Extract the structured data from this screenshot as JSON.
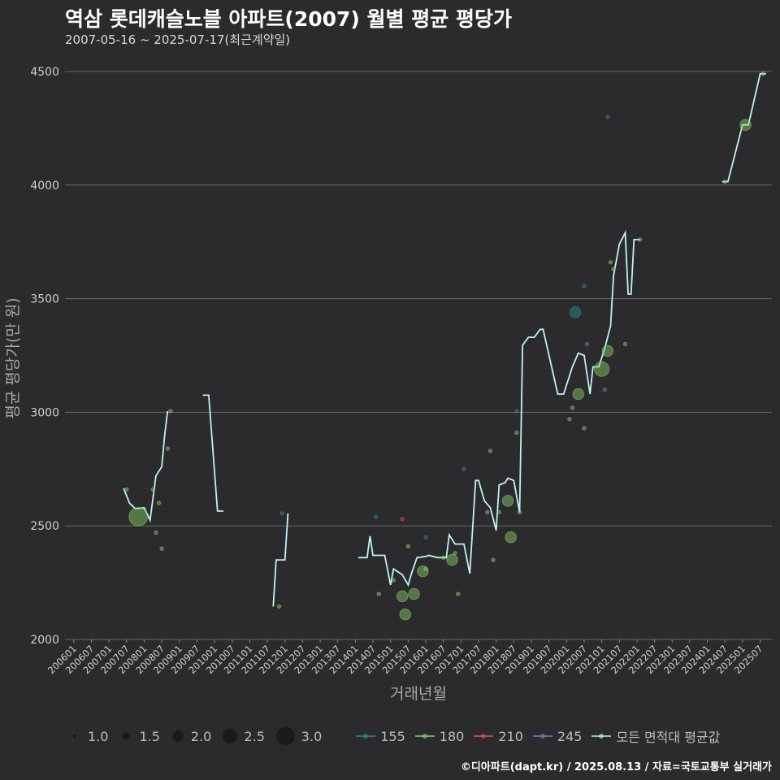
{
  "chart_data": {
    "type": "scatter",
    "title": "역삼 롯데캐슬노블 아파트(2007) 월별 평균 평당가",
    "subtitle": "2007-05-16 ~ 2025-07-17(최근계약일)",
    "xlabel": "거래년월",
    "ylabel": "평균 평당가(만 원)",
    "ylim": [
      2000,
      4600
    ],
    "yticks": [
      2000,
      2500,
      3000,
      3500,
      4000,
      4500
    ],
    "grid": true,
    "x_range_months": [
      "2005-10",
      "2025-11"
    ],
    "xtick_labels": [
      "200601",
      "200607",
      "200701",
      "200707",
      "200801",
      "200807",
      "200901",
      "200907",
      "201001",
      "201007",
      "201101",
      "201107",
      "201201",
      "201207",
      "201301",
      "201307",
      "201401",
      "201407",
      "201501",
      "201507",
      "201601",
      "201607",
      "201701",
      "201707",
      "201801",
      "201807",
      "201901",
      "201907",
      "202001",
      "202007",
      "202101",
      "202107",
      "202201",
      "202207",
      "202301",
      "202307",
      "202401",
      "202407",
      "202501",
      "202507"
    ],
    "size_legend": {
      "title": "",
      "values": [
        "1.0",
        "1.5",
        "2.0",
        "2.5",
        "3.0"
      ]
    },
    "color_legend": [
      {
        "name": "155",
        "color": "#2a8e96"
      },
      {
        "name": "180",
        "color": "#8ed36b"
      },
      {
        "name": "210",
        "color": "#e0545a"
      },
      {
        "name": "245",
        "color": "#6f82c4"
      },
      {
        "name": "모든 면적대 평균값",
        "color": "#bff2f2"
      }
    ],
    "series": [
      {
        "name": "모든 면적대 평균값",
        "type": "line",
        "points": [
          {
            "x": "2007-06",
            "y": 2665
          },
          {
            "x": "2007-08",
            "y": 2600
          },
          {
            "x": "2007-10",
            "y": 2575
          },
          {
            "x": "2008-01",
            "y": 2580
          },
          {
            "x": "2008-03",
            "y": 2525
          },
          {
            "x": "2008-05",
            "y": 2720
          },
          {
            "x": "2008-07",
            "y": 2760
          },
          {
            "x": "2008-08",
            "y": 2900
          },
          {
            "x": "2008-09",
            "y": 3005
          },
          {
            "x": "2009-09",
            "y": 3075
          },
          {
            "x": "2009-11",
            "y": 3075
          },
          {
            "x": "2010-02",
            "y": 2565
          },
          {
            "x": "2010-04",
            "y": 2565
          },
          {
            "x": "2011-09",
            "y": 2145
          },
          {
            "x": "2011-10",
            "y": 2350
          },
          {
            "x": "2012-01",
            "y": 2350
          },
          {
            "x": "2012-02",
            "y": 2555
          },
          {
            "x": "2014-02",
            "y": 2360
          },
          {
            "x": "2014-05",
            "y": 2360
          },
          {
            "x": "2014-06",
            "y": 2455
          },
          {
            "x": "2014-07",
            "y": 2370
          },
          {
            "x": "2014-11",
            "y": 2370
          },
          {
            "x": "2015-01",
            "y": 2240
          },
          {
            "x": "2015-02",
            "y": 2310
          },
          {
            "x": "2015-05",
            "y": 2285
          },
          {
            "x": "2015-07",
            "y": 2240
          },
          {
            "x": "2015-08",
            "y": 2285
          },
          {
            "x": "2015-10",
            "y": 2360
          },
          {
            "x": "2016-01",
            "y": 2365
          },
          {
            "x": "2016-02",
            "y": 2370
          },
          {
            "x": "2016-05",
            "y": 2360
          },
          {
            "x": "2016-08",
            "y": 2360
          },
          {
            "x": "2016-09",
            "y": 2460
          },
          {
            "x": "2016-11",
            "y": 2420
          },
          {
            "x": "2017-02",
            "y": 2420
          },
          {
            "x": "2017-04",
            "y": 2290
          },
          {
            "x": "2017-06",
            "y": 2700
          },
          {
            "x": "2017-07",
            "y": 2700
          },
          {
            "x": "2017-09",
            "y": 2610
          },
          {
            "x": "2017-11",
            "y": 2580
          },
          {
            "x": "2018-01",
            "y": 2480
          },
          {
            "x": "2018-02",
            "y": 2680
          },
          {
            "x": "2018-04",
            "y": 2690
          },
          {
            "x": "2018-05",
            "y": 2710
          },
          {
            "x": "2018-07",
            "y": 2700
          },
          {
            "x": "2018-09",
            "y": 2560
          },
          {
            "x": "2018-10",
            "y": 3295
          },
          {
            "x": "2018-12",
            "y": 3330
          },
          {
            "x": "2019-02",
            "y": 3330
          },
          {
            "x": "2019-04",
            "y": 3365
          },
          {
            "x": "2019-05",
            "y": 3365
          },
          {
            "x": "2019-10",
            "y": 3080
          },
          {
            "x": "2019-12",
            "y": 3080
          },
          {
            "x": "2020-03",
            "y": 3200
          },
          {
            "x": "2020-05",
            "y": 3260
          },
          {
            "x": "2020-07",
            "y": 3250
          },
          {
            "x": "2020-09",
            "y": 3080
          },
          {
            "x": "2020-10",
            "y": 3200
          },
          {
            "x": "2020-12",
            "y": 3200
          },
          {
            "x": "2021-02",
            "y": 3280
          },
          {
            "x": "2021-04",
            "y": 3380
          },
          {
            "x": "2021-05",
            "y": 3600
          },
          {
            "x": "2021-07",
            "y": 3740
          },
          {
            "x": "2021-09",
            "y": 3790
          },
          {
            "x": "2021-10",
            "y": 3520
          },
          {
            "x": "2021-11",
            "y": 3520
          },
          {
            "x": "2021-12",
            "y": 3760
          },
          {
            "x": "2022-02",
            "y": 3760
          },
          {
            "x": "2024-06",
            "y": 4015
          },
          {
            "x": "2024-08",
            "y": 4015
          },
          {
            "x": "2025-01",
            "y": 4265
          },
          {
            "x": "2025-03",
            "y": 4265
          },
          {
            "x": "2025-07",
            "y": 4490
          },
          {
            "x": "2025-09",
            "y": 4490
          }
        ]
      },
      {
        "name": "155",
        "type": "points",
        "points": [
          {
            "x": "2011-12",
            "y": 2555,
            "size": 1.0
          },
          {
            "x": "2014-08",
            "y": 2540,
            "size": 1.0
          },
          {
            "x": "2016-01",
            "y": 2450,
            "size": 1.0
          },
          {
            "x": "2017-02",
            "y": 2750,
            "size": 1.0
          },
          {
            "x": "2018-08",
            "y": 3005,
            "size": 1.0
          },
          {
            "x": "2020-04",
            "y": 3440,
            "size": 2.0
          },
          {
            "x": "2020-07",
            "y": 3555,
            "size": 1.0
          },
          {
            "x": "2021-03",
            "y": 4300,
            "size": 1.0
          }
        ]
      },
      {
        "name": "180",
        "type": "points",
        "points": [
          {
            "x": "2007-07",
            "y": 2660,
            "size": 1.0
          },
          {
            "x": "2007-11",
            "y": 2540,
            "size": 3.0
          },
          {
            "x": "2008-04",
            "y": 2660,
            "size": 1.0
          },
          {
            "x": "2008-05",
            "y": 2470,
            "size": 1.0
          },
          {
            "x": "2008-06",
            "y": 2600,
            "size": 1.0
          },
          {
            "x": "2008-07",
            "y": 2400,
            "size": 1.0
          },
          {
            "x": "2008-09",
            "y": 2840,
            "size": 1.0
          },
          {
            "x": "2008-10",
            "y": 3005,
            "size": 1.0
          },
          {
            "x": "2011-11",
            "y": 2145,
            "size": 1.0
          },
          {
            "x": "2014-09",
            "y": 2200,
            "size": 1.0
          },
          {
            "x": "2015-02",
            "y": 2260,
            "size": 1.0
          },
          {
            "x": "2015-05",
            "y": 2190,
            "size": 2.0
          },
          {
            "x": "2015-06",
            "y": 2110,
            "size": 2.0
          },
          {
            "x": "2015-07",
            "y": 2410,
            "size": 1.0
          },
          {
            "x": "2015-09",
            "y": 2200,
            "size": 2.0
          },
          {
            "x": "2015-12",
            "y": 2300,
            "size": 2.0
          },
          {
            "x": "2016-01",
            "y": 2310,
            "size": 1.0
          },
          {
            "x": "2016-07",
            "y": 2360,
            "size": 1.0
          },
          {
            "x": "2016-10",
            "y": 2350,
            "size": 2.0
          },
          {
            "x": "2016-11",
            "y": 2380,
            "size": 1.0
          },
          {
            "x": "2016-12",
            "y": 2200,
            "size": 1.0
          },
          {
            "x": "2017-10",
            "y": 2560,
            "size": 1.0
          },
          {
            "x": "2017-11",
            "y": 2830,
            "size": 1.0
          },
          {
            "x": "2017-12",
            "y": 2350,
            "size": 1.0
          },
          {
            "x": "2018-02",
            "y": 2560,
            "size": 1.0
          },
          {
            "x": "2018-05",
            "y": 2610,
            "size": 2.0
          },
          {
            "x": "2018-06",
            "y": 2450,
            "size": 2.0
          },
          {
            "x": "2018-08",
            "y": 2910,
            "size": 1.0
          },
          {
            "x": "2018-09",
            "y": 2560,
            "size": 1.0
          },
          {
            "x": "2020-02",
            "y": 2970,
            "size": 1.0
          },
          {
            "x": "2020-03",
            "y": 3020,
            "size": 1.0
          },
          {
            "x": "2020-05",
            "y": 3080,
            "size": 2.0
          },
          {
            "x": "2020-07",
            "y": 2930,
            "size": 1.0
          },
          {
            "x": "2021-01",
            "y": 3190,
            "size": 2.5
          },
          {
            "x": "2021-03",
            "y": 3270,
            "size": 2.0
          },
          {
            "x": "2021-04",
            "y": 3660,
            "size": 1.0
          },
          {
            "x": "2021-05",
            "y": 3630,
            "size": 1.0
          },
          {
            "x": "2021-09",
            "y": 3300,
            "size": 1.0
          },
          {
            "x": "2022-02",
            "y": 3760,
            "size": 1.0
          },
          {
            "x": "2024-07",
            "y": 4015,
            "size": 1.0
          },
          {
            "x": "2025-02",
            "y": 4265,
            "size": 2.0
          },
          {
            "x": "2025-08",
            "y": 4490,
            "size": 1.0
          }
        ]
      },
      {
        "name": "210",
        "type": "points",
        "points": [
          {
            "x": "2015-05",
            "y": 2530,
            "size": 1.0
          }
        ]
      },
      {
        "name": "245",
        "type": "points",
        "points": [
          {
            "x": "2020-08",
            "y": 3300,
            "size": 1.0
          },
          {
            "x": "2021-02",
            "y": 3100,
            "size": 1.0
          }
        ]
      }
    ]
  },
  "caption": "©디아파트(dapt.kr) / 2025.08.13 / 자료=국토교통부 실거래가"
}
